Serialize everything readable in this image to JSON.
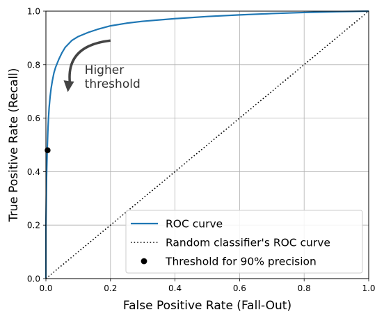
{
  "chart_data": {
    "type": "line",
    "xlabel": "False Positive Rate (Fall-Out)",
    "ylabel": "True Positive Rate (Recall)",
    "xlim": [
      0.0,
      1.0
    ],
    "ylim": [
      0.0,
      1.0
    ],
    "x_ticks": [
      0.0,
      0.2,
      0.4,
      0.6,
      0.8,
      1.0
    ],
    "y_ticks": [
      0.0,
      0.2,
      0.4,
      0.6,
      0.8,
      1.0
    ],
    "x_tick_labels": [
      "0.0",
      "0.2",
      "0.4",
      "0.6",
      "0.8",
      "1.0"
    ],
    "y_tick_labels": [
      "0.0",
      "0.2",
      "0.4",
      "0.6",
      "0.8",
      "1.0"
    ],
    "grid": true,
    "legend_position": "lower-right",
    "series": [
      {
        "name": "ROC curve",
        "style": "solid",
        "color": "#1f77b4",
        "x": [
          0.0,
          0.0,
          0.002,
          0.004,
          0.006,
          0.008,
          0.01,
          0.013,
          0.016,
          0.02,
          0.025,
          0.03,
          0.04,
          0.05,
          0.06,
          0.08,
          0.1,
          0.13,
          0.16,
          0.2,
          0.25,
          0.3,
          0.4,
          0.5,
          0.6,
          0.7,
          0.8,
          0.9,
          1.0
        ],
        "y": [
          0.0,
          0.2,
          0.38,
          0.48,
          0.55,
          0.6,
          0.64,
          0.68,
          0.71,
          0.74,
          0.77,
          0.79,
          0.82,
          0.845,
          0.865,
          0.89,
          0.905,
          0.92,
          0.932,
          0.945,
          0.955,
          0.962,
          0.972,
          0.98,
          0.986,
          0.991,
          0.995,
          0.998,
          1.0
        ]
      },
      {
        "name": "Random classifier's ROC curve",
        "style": "dotted",
        "color": "#000000",
        "x": [
          0.0,
          1.0
        ],
        "y": [
          0.0,
          1.0
        ]
      },
      {
        "name": "Threshold for 90% precision",
        "style": "marker",
        "color": "#000000",
        "x": [
          0.0053
        ],
        "y": [
          0.4799
        ]
      }
    ],
    "annotations": [
      {
        "text_lines": [
          "Higher",
          "threshold"
        ],
        "text_x": 0.12,
        "text_y": 0.765,
        "arrow_from": [
          0.2,
          0.89
        ],
        "arrow_to": [
          0.07,
          0.7
        ],
        "color": "#444444"
      }
    ]
  }
}
